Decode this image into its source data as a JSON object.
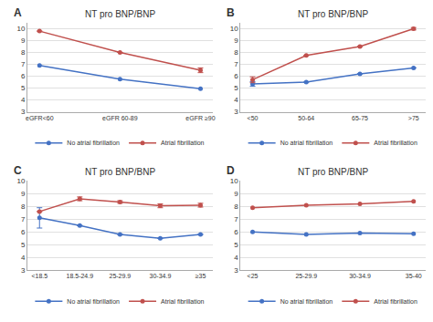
{
  "chart_data": [
    {
      "type": "line",
      "title": "NT pro BNP/BNP",
      "annotations": [
        "A"
      ],
      "categories": [
        "eGFR<60",
        "eGFR 60-89",
        "eGFR ≥90"
      ],
      "series": [
        {
          "name": "No atrial fibrillation",
          "color": "#4472c4",
          "values": [
            6.9,
            5.75,
            4.95
          ],
          "errors": [
            null,
            null,
            null
          ]
        },
        {
          "name": "Atrial fibrillation",
          "color": "#c0504d",
          "values": [
            9.8,
            8.0,
            6.5
          ],
          "errors": [
            null,
            null,
            0.2
          ]
        }
      ],
      "ylim": [
        3,
        10.5
      ],
      "yticks": [
        3,
        4,
        5,
        6,
        7,
        8,
        9,
        10
      ],
      "grid": true,
      "legend": "bottom",
      "marker": "circle"
    },
    {
      "type": "line",
      "title": "NT pro BNP/BNP",
      "annotations": [
        "B"
      ],
      "categories": [
        "<50",
        "50-64",
        "65-75",
        ">75"
      ],
      "series": [
        {
          "name": "No atrial fibrillation",
          "color": "#4472c4",
          "values": [
            5.35,
            5.5,
            6.2,
            6.7
          ],
          "errors": [
            0.2,
            null,
            null,
            null
          ]
        },
        {
          "name": "Atrial fibrillation",
          "color": "#c0504d",
          "values": [
            5.7,
            7.75,
            8.5,
            10.0
          ],
          "errors": [
            0.25,
            null,
            null,
            0.1
          ]
        }
      ],
      "ylim": [
        3,
        10.5
      ],
      "yticks": [
        3,
        4,
        5,
        6,
        7,
        8,
        9,
        10
      ],
      "grid": true,
      "legend": "bottom",
      "marker": "circle"
    },
    {
      "type": "line",
      "title": "NT pro BNP/BNP",
      "annotations": [
        "C"
      ],
      "categories": [
        "<18.5",
        "18.5-24.9",
        "25-29.9",
        "30-34.9",
        "≥35"
      ],
      "series": [
        {
          "name": "No atrial fibrillation",
          "color": "#4472c4",
          "values": [
            7.1,
            6.5,
            5.8,
            5.5,
            5.8
          ],
          "errors": [
            0.8,
            null,
            null,
            null,
            null
          ]
        },
        {
          "name": "Atrial fibrillation",
          "color": "#c0504d",
          "values": [
            7.6,
            8.6,
            8.35,
            8.05,
            8.1
          ],
          "errors": [
            null,
            0.15,
            0.1,
            0.15,
            0.15
          ]
        }
      ],
      "ylim": [
        3,
        10
      ],
      "yticks": [
        3,
        4,
        5,
        6,
        7,
        8,
        9,
        10
      ],
      "grid": true,
      "legend": "bottom",
      "marker": "circle"
    },
    {
      "type": "line",
      "title": "NT pro BNP/BNP",
      "annotations": [
        "D"
      ],
      "categories": [
        "<25",
        "25-29.9",
        "30-34.9",
        "35-40"
      ],
      "series": [
        {
          "name": "No atrial fibrillation",
          "color": "#4472c4",
          "values": [
            6.0,
            5.8,
            5.9,
            5.85
          ],
          "errors": [
            null,
            null,
            null,
            null
          ]
        },
        {
          "name": "Atrial fibrillation",
          "color": "#c0504d",
          "values": [
            7.9,
            8.1,
            8.2,
            8.4
          ],
          "errors": [
            null,
            null,
            null,
            null
          ]
        }
      ],
      "ylim": [
        3,
        10
      ],
      "yticks": [
        3,
        4,
        5,
        6,
        7,
        8,
        9,
        10
      ],
      "grid": true,
      "legend": "bottom",
      "marker": "circle"
    }
  ]
}
